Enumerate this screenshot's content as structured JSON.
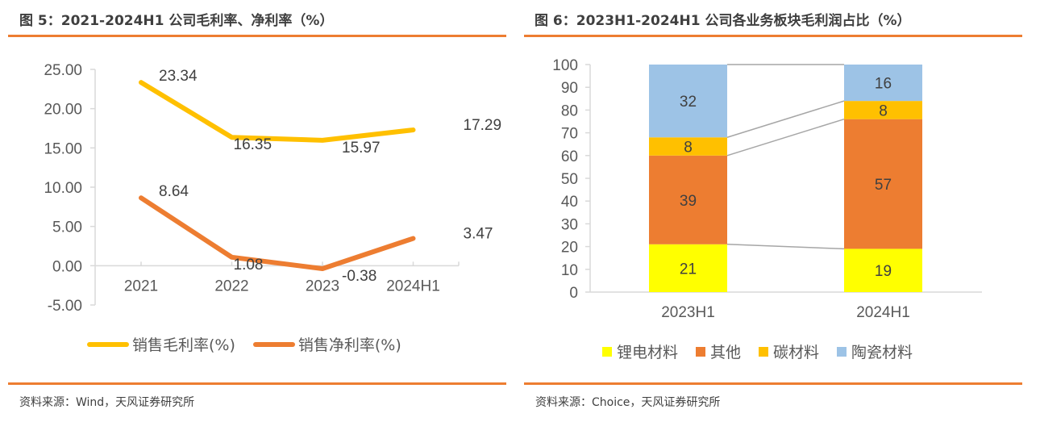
{
  "chart_data": [
    {
      "type": "line",
      "figure_label": "图 5：2021-2024H1 公司毛利率、净利率（%）",
      "title": "2021-2024H1 公司毛利率、净利率（%）",
      "categories": [
        "2021",
        "2022",
        "2023",
        "2024H1"
      ],
      "y_ticks": [
        "25.00",
        "20.00",
        "15.00",
        "10.00",
        "5.00",
        "0.00",
        "-5.00"
      ],
      "ylim": [
        -5,
        25
      ],
      "series": [
        {
          "name": "销售毛利率(%)",
          "color": "#FFC000",
          "values": [
            23.34,
            16.35,
            15.97,
            17.29
          ],
          "labels": [
            "23.34",
            "16.35",
            "15.97",
            "17.29"
          ]
        },
        {
          "name": "销售净利率(%)",
          "color": "#ED7D31",
          "values": [
            8.64,
            1.08,
            -0.38,
            3.47
          ],
          "labels": [
            "8.64",
            "1.08",
            "-0.38",
            "3.47"
          ]
        }
      ],
      "legend_position": "bottom",
      "source": "资料来源：Wind，天风证券研究所"
    },
    {
      "type": "bar",
      "stacked": true,
      "figure_label": "图 6：2023H1-2024H1 公司各业务板块毛利润占比（%）",
      "title": "2023H1-2024H1 公司各业务板块毛利润占比（%）",
      "categories": [
        "2023H1",
        "2024H1"
      ],
      "y_ticks": [
        "100",
        "90",
        "80",
        "70",
        "60",
        "50",
        "40",
        "30",
        "20",
        "10",
        "0"
      ],
      "ylim": [
        0,
        100
      ],
      "series": [
        {
          "name": "锂电材料",
          "color": "#FFFF00",
          "values": [
            21,
            19
          ]
        },
        {
          "name": "其他",
          "color": "#ED7D31",
          "values": [
            39,
            57
          ]
        },
        {
          "name": "碳材料",
          "color": "#FFC000",
          "values": [
            8,
            8
          ]
        },
        {
          "name": "陶瓷材料",
          "color": "#9DC3E6",
          "values": [
            32,
            16
          ]
        }
      ],
      "series_lines": true,
      "legend_position": "bottom",
      "source": "资料来源：Choice，天风证券研究所"
    }
  ],
  "theme": {
    "accent_rule": "#ED7D31",
    "axis": "#D9D9D9",
    "text": "#595959"
  }
}
